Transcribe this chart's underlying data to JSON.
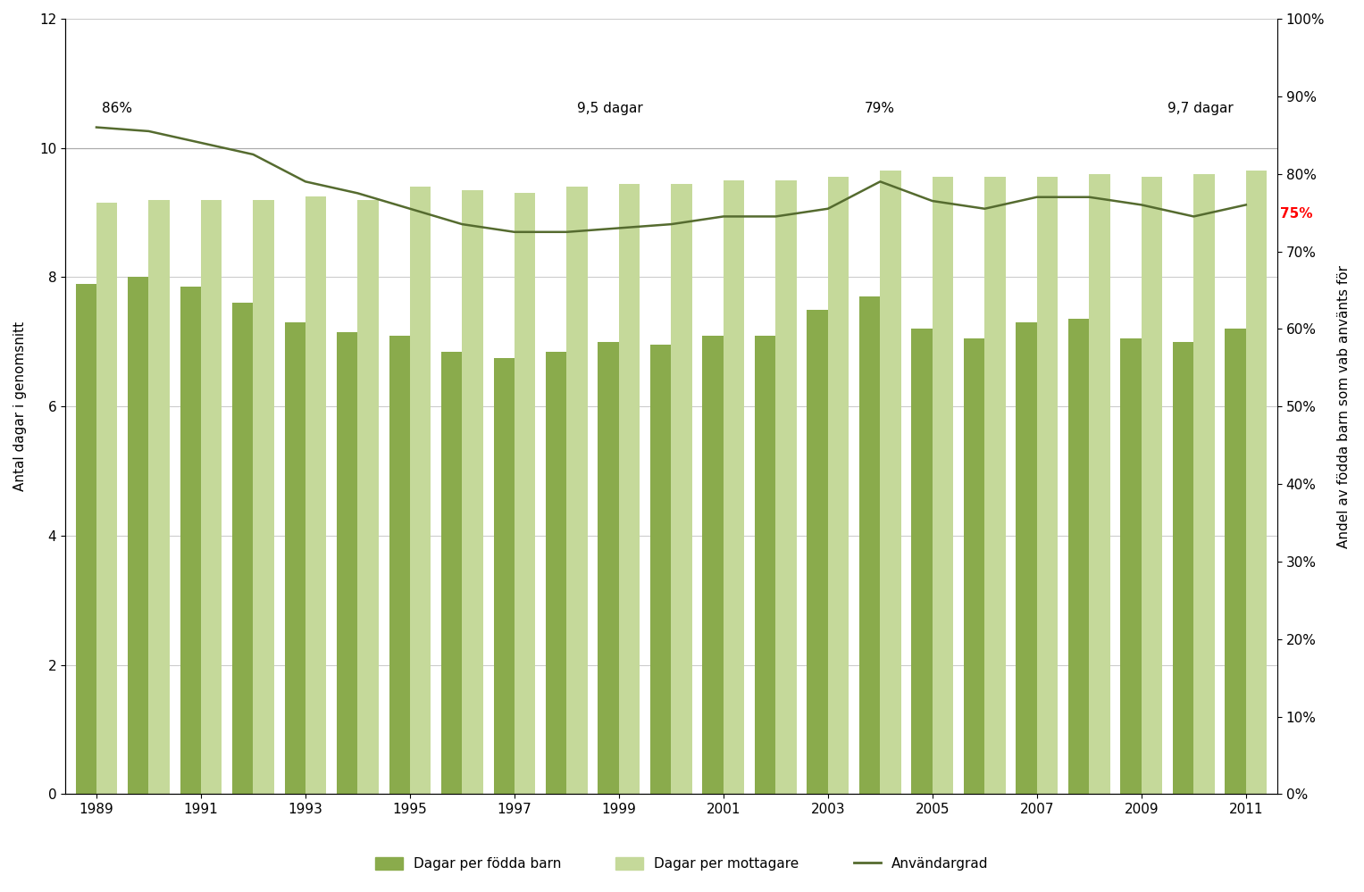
{
  "years": [
    1989,
    1990,
    1991,
    1992,
    1993,
    1994,
    1995,
    1996,
    1997,
    1998,
    1999,
    2000,
    2001,
    2002,
    2003,
    2004,
    2005,
    2006,
    2007,
    2008,
    2009,
    2010,
    2011
  ],
  "days_per_born": [
    7.9,
    8.0,
    7.85,
    7.6,
    7.3,
    7.15,
    7.1,
    6.85,
    6.75,
    6.85,
    7.0,
    6.95,
    7.1,
    7.1,
    7.5,
    7.7,
    7.2,
    7.05,
    7.3,
    7.35,
    7.05,
    7.0,
    7.2
  ],
  "days_per_recipient": [
    9.15,
    9.2,
    9.2,
    9.2,
    9.25,
    9.2,
    9.4,
    9.35,
    9.3,
    9.4,
    9.45,
    9.45,
    9.5,
    9.5,
    9.55,
    9.65,
    9.55,
    9.55,
    9.55,
    9.6,
    9.55,
    9.6,
    9.65
  ],
  "usage_rate": [
    0.86,
    0.855,
    0.84,
    0.825,
    0.79,
    0.775,
    0.755,
    0.735,
    0.725,
    0.725,
    0.73,
    0.735,
    0.745,
    0.745,
    0.755,
    0.79,
    0.765,
    0.755,
    0.77,
    0.77,
    0.76,
    0.745,
    0.76
  ],
  "bar_color_dark": "#8aab4c",
  "bar_color_light": "#c5d99a",
  "line_color": "#556b2f",
  "ylabel_left": "Antal dagar i genomsnitt",
  "ylabel_right": "Andel av födda barn som vab använts för",
  "ylim_left": [
    0,
    12
  ],
  "ylim_right": [
    0.0,
    1.0
  ],
  "legend_bar_dark": "Dagar per födda barn",
  "legend_bar_light": "Dagar per mottagare",
  "legend_line": "Användargrad",
  "annotation_86": "86%",
  "annotation_79": "79%",
  "annotation_95dagar": "9,5 dagar",
  "annotation_97dagar": "9,7 dagar",
  "annotation_75pct": "75%",
  "hline_value": 10.0,
  "background_color": "#ffffff",
  "grid_color": "#cccccc",
  "bar_width": 0.4,
  "group_width": 1.0
}
